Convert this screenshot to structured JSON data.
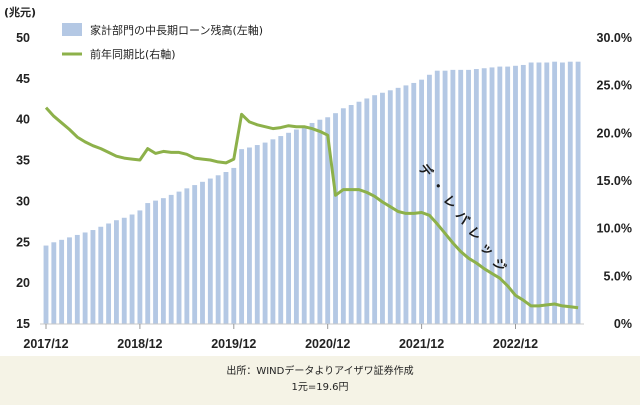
{
  "chart_data": {
    "type": "bar+line",
    "left_unit": "(兆元)",
    "left_ticks": [
      "15",
      "20",
      "25",
      "30",
      "35",
      "40",
      "45",
      "50"
    ],
    "right_ticks": [
      "0%",
      "5.0%",
      "10.0%",
      "15.0%",
      "20.0%",
      "25.0%",
      "30.0%"
    ],
    "ylim_left": [
      15,
      50
    ],
    "ylim_right": [
      0,
      30
    ],
    "x_tick_labels": [
      "2017/12",
      "2018/12",
      "2019/12",
      "2020/12",
      "2021/12",
      "2022/12"
    ],
    "months": [
      "2017/12",
      "2018/01",
      "2018/02",
      "2018/03",
      "2018/04",
      "2018/05",
      "2018/06",
      "2018/07",
      "2018/08",
      "2018/09",
      "2018/10",
      "2018/11",
      "2018/12",
      "2019/01",
      "2019/02",
      "2019/03",
      "2019/04",
      "2019/05",
      "2019/06",
      "2019/07",
      "2019/08",
      "2019/09",
      "2019/10",
      "2019/11",
      "2019/12",
      "2020/01",
      "2020/02",
      "2020/03",
      "2020/04",
      "2020/05",
      "2020/06",
      "2020/07",
      "2020/08",
      "2020/09",
      "2020/10",
      "2020/11",
      "2020/12",
      "2021/01",
      "2021/02",
      "2021/03",
      "2021/04",
      "2021/05",
      "2021/06",
      "2021/07",
      "2021/08",
      "2021/09",
      "2021/10",
      "2021/11",
      "2021/12",
      "2022/01",
      "2022/02",
      "2022/03",
      "2022/04",
      "2022/05",
      "2022/06",
      "2022/07",
      "2022/08",
      "2022/09",
      "2022/10",
      "2022/11",
      "2022/12",
      "2023/01",
      "2023/02",
      "2023/03",
      "2023/04",
      "2023/05",
      "2023/06",
      "2023/07",
      "2023/08"
    ],
    "series": [
      {
        "name": "家計部門の中長期ローン残高(左軸)",
        "type": "bar",
        "axis": "left",
        "color": "#b4c8e4",
        "values": [
          24.6,
          25.0,
          25.3,
          25.6,
          25.9,
          26.2,
          26.5,
          26.9,
          27.3,
          27.7,
          28.0,
          28.4,
          28.9,
          29.8,
          30.1,
          30.4,
          30.8,
          31.2,
          31.6,
          32.0,
          32.4,
          32.8,
          33.2,
          33.6,
          34.1,
          36.4,
          36.6,
          36.9,
          37.2,
          37.6,
          38.0,
          38.4,
          38.8,
          39.2,
          39.6,
          40.0,
          40.3,
          40.8,
          41.4,
          41.8,
          42.2,
          42.6,
          43.0,
          43.3,
          43.6,
          43.9,
          44.2,
          44.5,
          44.9,
          45.5,
          46.0,
          46.0,
          46.1,
          46.1,
          46.1,
          46.2,
          46.3,
          46.4,
          46.5,
          46.5,
          46.6,
          46.7,
          47.0,
          47.0,
          47.0,
          47.1,
          47.0,
          47.1,
          47.1
        ]
      },
      {
        "name": "前年同期比(右軸)",
        "type": "line",
        "axis": "right",
        "color": "#8db14a",
        "values": [
          22.7,
          21.8,
          21.1,
          20.4,
          19.6,
          19.1,
          18.7,
          18.4,
          18.0,
          17.6,
          17.4,
          17.3,
          17.2,
          18.4,
          17.9,
          18.1,
          18.0,
          18.0,
          17.8,
          17.4,
          17.3,
          17.2,
          17.0,
          16.9,
          17.3,
          22.0,
          21.2,
          20.9,
          20.7,
          20.5,
          20.6,
          20.8,
          20.7,
          20.7,
          20.5,
          20.2,
          19.8,
          13.5,
          14.1,
          14.1,
          14.1,
          13.8,
          13.4,
          12.8,
          12.3,
          11.8,
          11.6,
          11.6,
          11.7,
          11.4,
          10.5,
          9.5,
          8.5,
          7.6,
          6.9,
          6.4,
          5.8,
          5.3,
          4.8,
          4.0,
          3.0,
          2.5,
          1.9,
          1.9,
          2.0,
          2.1,
          1.9,
          1.8,
          1.7
        ]
      }
    ],
    "annotation": "デ・レバレッジ"
  },
  "footer": {
    "source": "出所：WINDデータよりアイザワ証券作成",
    "rate": "1元=19.6円"
  }
}
